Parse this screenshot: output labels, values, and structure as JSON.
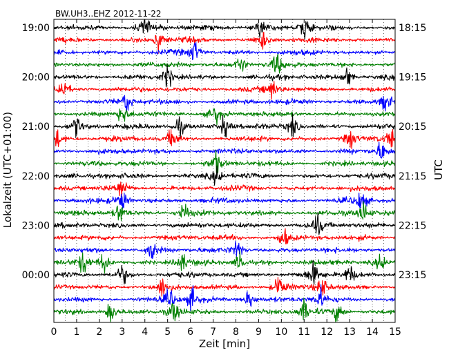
{
  "chart_data": {
    "type": "line",
    "title": "BW.UH3..EHZ 2012-11-22",
    "xlabel": "Zeit  [min]",
    "ylabel_left": "Lokalzeit (UTC+01:00)",
    "ylabel_right": "UTC",
    "xlim": [
      0,
      15
    ],
    "x_ticks": [
      0,
      1,
      2,
      3,
      4,
      5,
      6,
      7,
      8,
      9,
      10,
      11,
      12,
      13,
      14,
      15
    ],
    "minor_grid_x": "dotted, every 0.5 min",
    "trace_count": 24,
    "trace_interval_min": 15,
    "trace_colors": [
      "#000000",
      "#ff0000",
      "#0000ff",
      "#008000"
    ],
    "left_tick_labels": [
      "19:00",
      "20:00",
      "21:00",
      "22:00",
      "23:00",
      "00:00"
    ],
    "right_tick_labels": [
      "18:15",
      "19:15",
      "20:15",
      "21:15",
      "22:15",
      "23:15"
    ],
    "events": [
      {
        "trace": 0,
        "x": 4.0
      },
      {
        "trace": 0,
        "x": 9.1
      },
      {
        "trace": 0,
        "x": 11.0
      },
      {
        "trace": 1,
        "x": 4.6
      },
      {
        "trace": 1,
        "x": 9.2
      },
      {
        "trace": 2,
        "x": 6.2
      },
      {
        "trace": 3,
        "x": 8.2
      },
      {
        "trace": 3,
        "x": 9.8
      },
      {
        "trace": 4,
        "x": 5.0
      },
      {
        "trace": 4,
        "x": 12.9
      },
      {
        "trace": 5,
        "x": 0.4
      },
      {
        "trace": 5,
        "x": 9.6
      },
      {
        "trace": 6,
        "x": 3.2
      },
      {
        "trace": 6,
        "x": 14.6
      },
      {
        "trace": 7,
        "x": 3.0
      },
      {
        "trace": 7,
        "x": 7.1
      },
      {
        "trace": 8,
        "x": 1.0
      },
      {
        "trace": 8,
        "x": 5.5
      },
      {
        "trace": 8,
        "x": 7.5
      },
      {
        "trace": 8,
        "x": 10.5
      },
      {
        "trace": 9,
        "x": 0.1
      },
      {
        "trace": 9,
        "x": 5.2
      },
      {
        "trace": 9,
        "x": 13.0
      },
      {
        "trace": 9,
        "x": 14.8
      },
      {
        "trace": 10,
        "x": 14.4
      },
      {
        "trace": 11,
        "x": 7.1
      },
      {
        "trace": 12,
        "x": 7.2
      },
      {
        "trace": 13,
        "x": 3.0
      },
      {
        "trace": 14,
        "x": 3.0
      },
      {
        "trace": 14,
        "x": 13.5
      },
      {
        "trace": 15,
        "x": 2.9
      },
      {
        "trace": 15,
        "x": 5.7
      },
      {
        "trace": 15,
        "x": 13.6
      },
      {
        "trace": 16,
        "x": 11.6
      },
      {
        "trace": 17,
        "x": 10.1
      },
      {
        "trace": 18,
        "x": 4.3
      },
      {
        "trace": 18,
        "x": 8.1
      },
      {
        "trace": 19,
        "x": 1.3
      },
      {
        "trace": 19,
        "x": 2.2
      },
      {
        "trace": 19,
        "x": 5.6
      },
      {
        "trace": 19,
        "x": 8.2
      },
      {
        "trace": 19,
        "x": 14.4
      },
      {
        "trace": 20,
        "x": 3.0
      },
      {
        "trace": 20,
        "x": 11.4
      },
      {
        "trace": 20,
        "x": 13.0
      },
      {
        "trace": 21,
        "x": 4.8
      },
      {
        "trace": 21,
        "x": 9.9
      },
      {
        "trace": 21,
        "x": 11.8
      },
      {
        "trace": 22,
        "x": 5.1
      },
      {
        "trace": 22,
        "x": 6.1
      },
      {
        "trace": 22,
        "x": 8.6
      },
      {
        "trace": 22,
        "x": 11.7
      },
      {
        "trace": 23,
        "x": 2.5
      },
      {
        "trace": 23,
        "x": 5.3
      },
      {
        "trace": 23,
        "x": 11.0
      },
      {
        "trace": 23,
        "x": 12.5
      }
    ]
  }
}
